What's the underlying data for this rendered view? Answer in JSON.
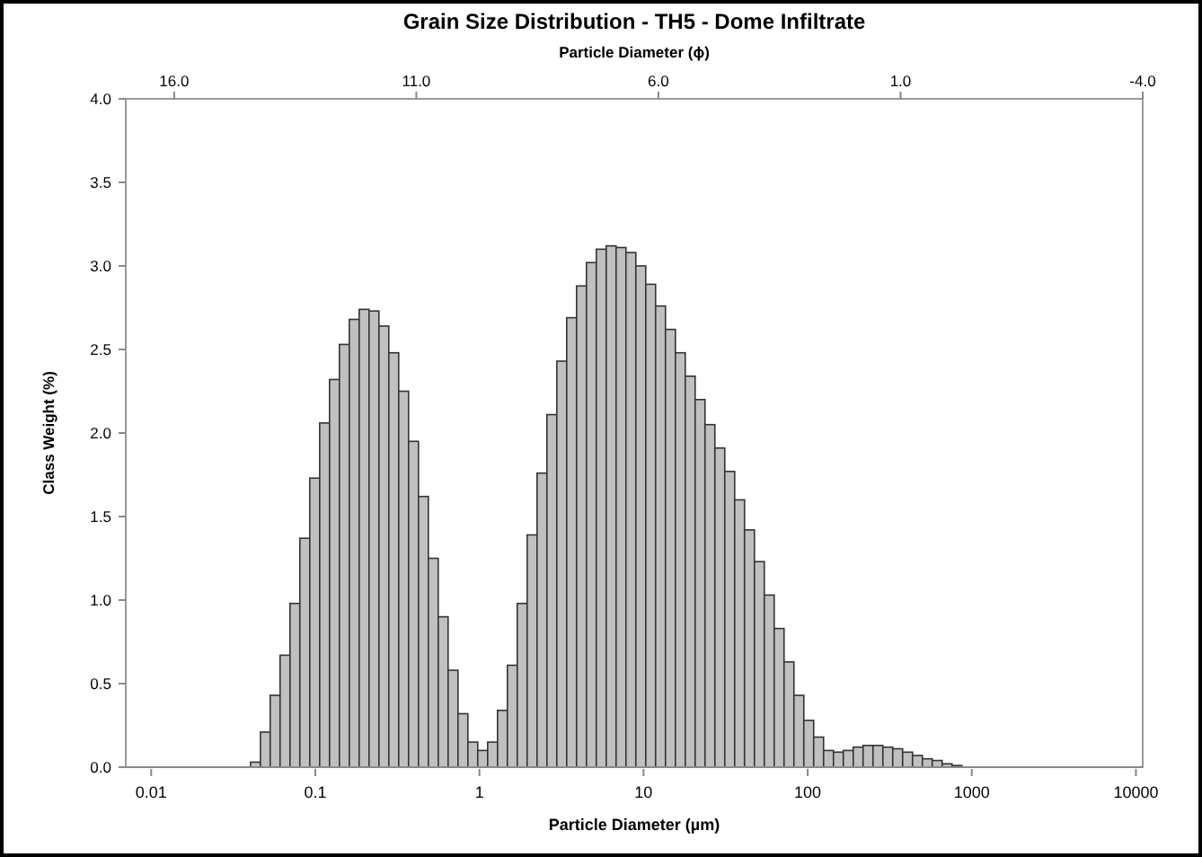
{
  "chart_data": {
    "type": "histogram",
    "title": "Grain Size Distribution - TH5 - Dome Infiltrate",
    "xlabel": "Particle Diameter (µm)",
    "x2label": "Particle Diameter (ϕ)",
    "ylabel": "Class Weight (%)",
    "bins": [
      0.0403,
      0.0463,
      0.0531,
      0.061,
      0.0701,
      0.0805,
      0.0925,
      0.1063,
      0.1221,
      0.1402,
      0.1611,
      0.185,
      0.2125,
      0.2441,
      0.2804,
      0.3221,
      0.37,
      0.4251,
      0.4883,
      0.5609,
      0.6443,
      0.7401,
      0.8502,
      0.9766,
      1.122,
      1.289,
      1.48,
      1.7,
      1.953,
      2.244,
      2.577,
      2.96,
      3.401,
      3.906,
      4.487,
      5.154,
      5.921,
      6.801,
      7.813,
      8.974,
      10.31,
      11.84,
      13.6,
      15.63,
      17.95,
      20.62,
      23.68,
      27.2,
      31.25,
      35.9,
      41.23,
      47.37,
      54.41,
      62.5,
      71.79,
      82.47,
      94.73,
      108.8,
      125,
      143.6,
      164.9,
      189.5,
      217.6,
      250,
      287.2,
      329.9,
      378.9,
      435.3,
      500,
      574.3,
      659.8,
      757.9,
      870.6
    ],
    "values": [
      0.03,
      0.21,
      0.43,
      0.67,
      0.98,
      1.37,
      1.73,
      2.06,
      2.32,
      2.53,
      2.68,
      2.74,
      2.73,
      2.64,
      2.48,
      2.25,
      1.95,
      1.62,
      1.25,
      0.9,
      0.58,
      0.32,
      0.15,
      0.1,
      0.15,
      0.34,
      0.61,
      0.98,
      1.39,
      1.76,
      2.11,
      2.43,
      2.69,
      2.88,
      3.02,
      3.1,
      3.12,
      3.11,
      3.08,
      3.0,
      2.89,
      2.76,
      2.62,
      2.48,
      2.34,
      2.2,
      2.05,
      1.91,
      1.77,
      1.6,
      1.42,
      1.23,
      1.03,
      0.83,
      0.63,
      0.43,
      0.28,
      0.18,
      0.1,
      0.09,
      0.1,
      0.12,
      0.13,
      0.13,
      0.12,
      0.11,
      0.09,
      0.07,
      0.05,
      0.04,
      0.02,
      0.01
    ],
    "color": "#c0c0c0",
    "log": "x",
    "grid": false,
    "xlim": [
      0.007,
      11000
    ],
    "xticks": [
      0.01,
      0.1,
      1,
      10,
      100,
      1000,
      10000
    ],
    "x2lim": [
      17,
      -4
    ],
    "x2ticks": [
      {
        "value": 16,
        "label": "16.0"
      },
      {
        "value": 11,
        "label": "11.0"
      },
      {
        "value": 6,
        "label": "6.0"
      },
      {
        "value": 1,
        "label": "1.0"
      },
      {
        "value": -4,
        "label": "-4.0"
      }
    ],
    "ylim": [
      0,
      4
    ],
    "yticks": [
      {
        "value": 0,
        "label": "0.0"
      },
      {
        "value": 0.5,
        "label": "0.5"
      },
      {
        "value": 1,
        "label": "1.0"
      },
      {
        "value": 1.5,
        "label": "1.5"
      },
      {
        "value": 2,
        "label": "2.0"
      },
      {
        "value": 2.5,
        "label": "2.5"
      },
      {
        "value": 3,
        "label": "3.0"
      },
      {
        "value": 3.5,
        "label": "3.5"
      },
      {
        "value": 4,
        "label": "4.0"
      }
    ]
  }
}
